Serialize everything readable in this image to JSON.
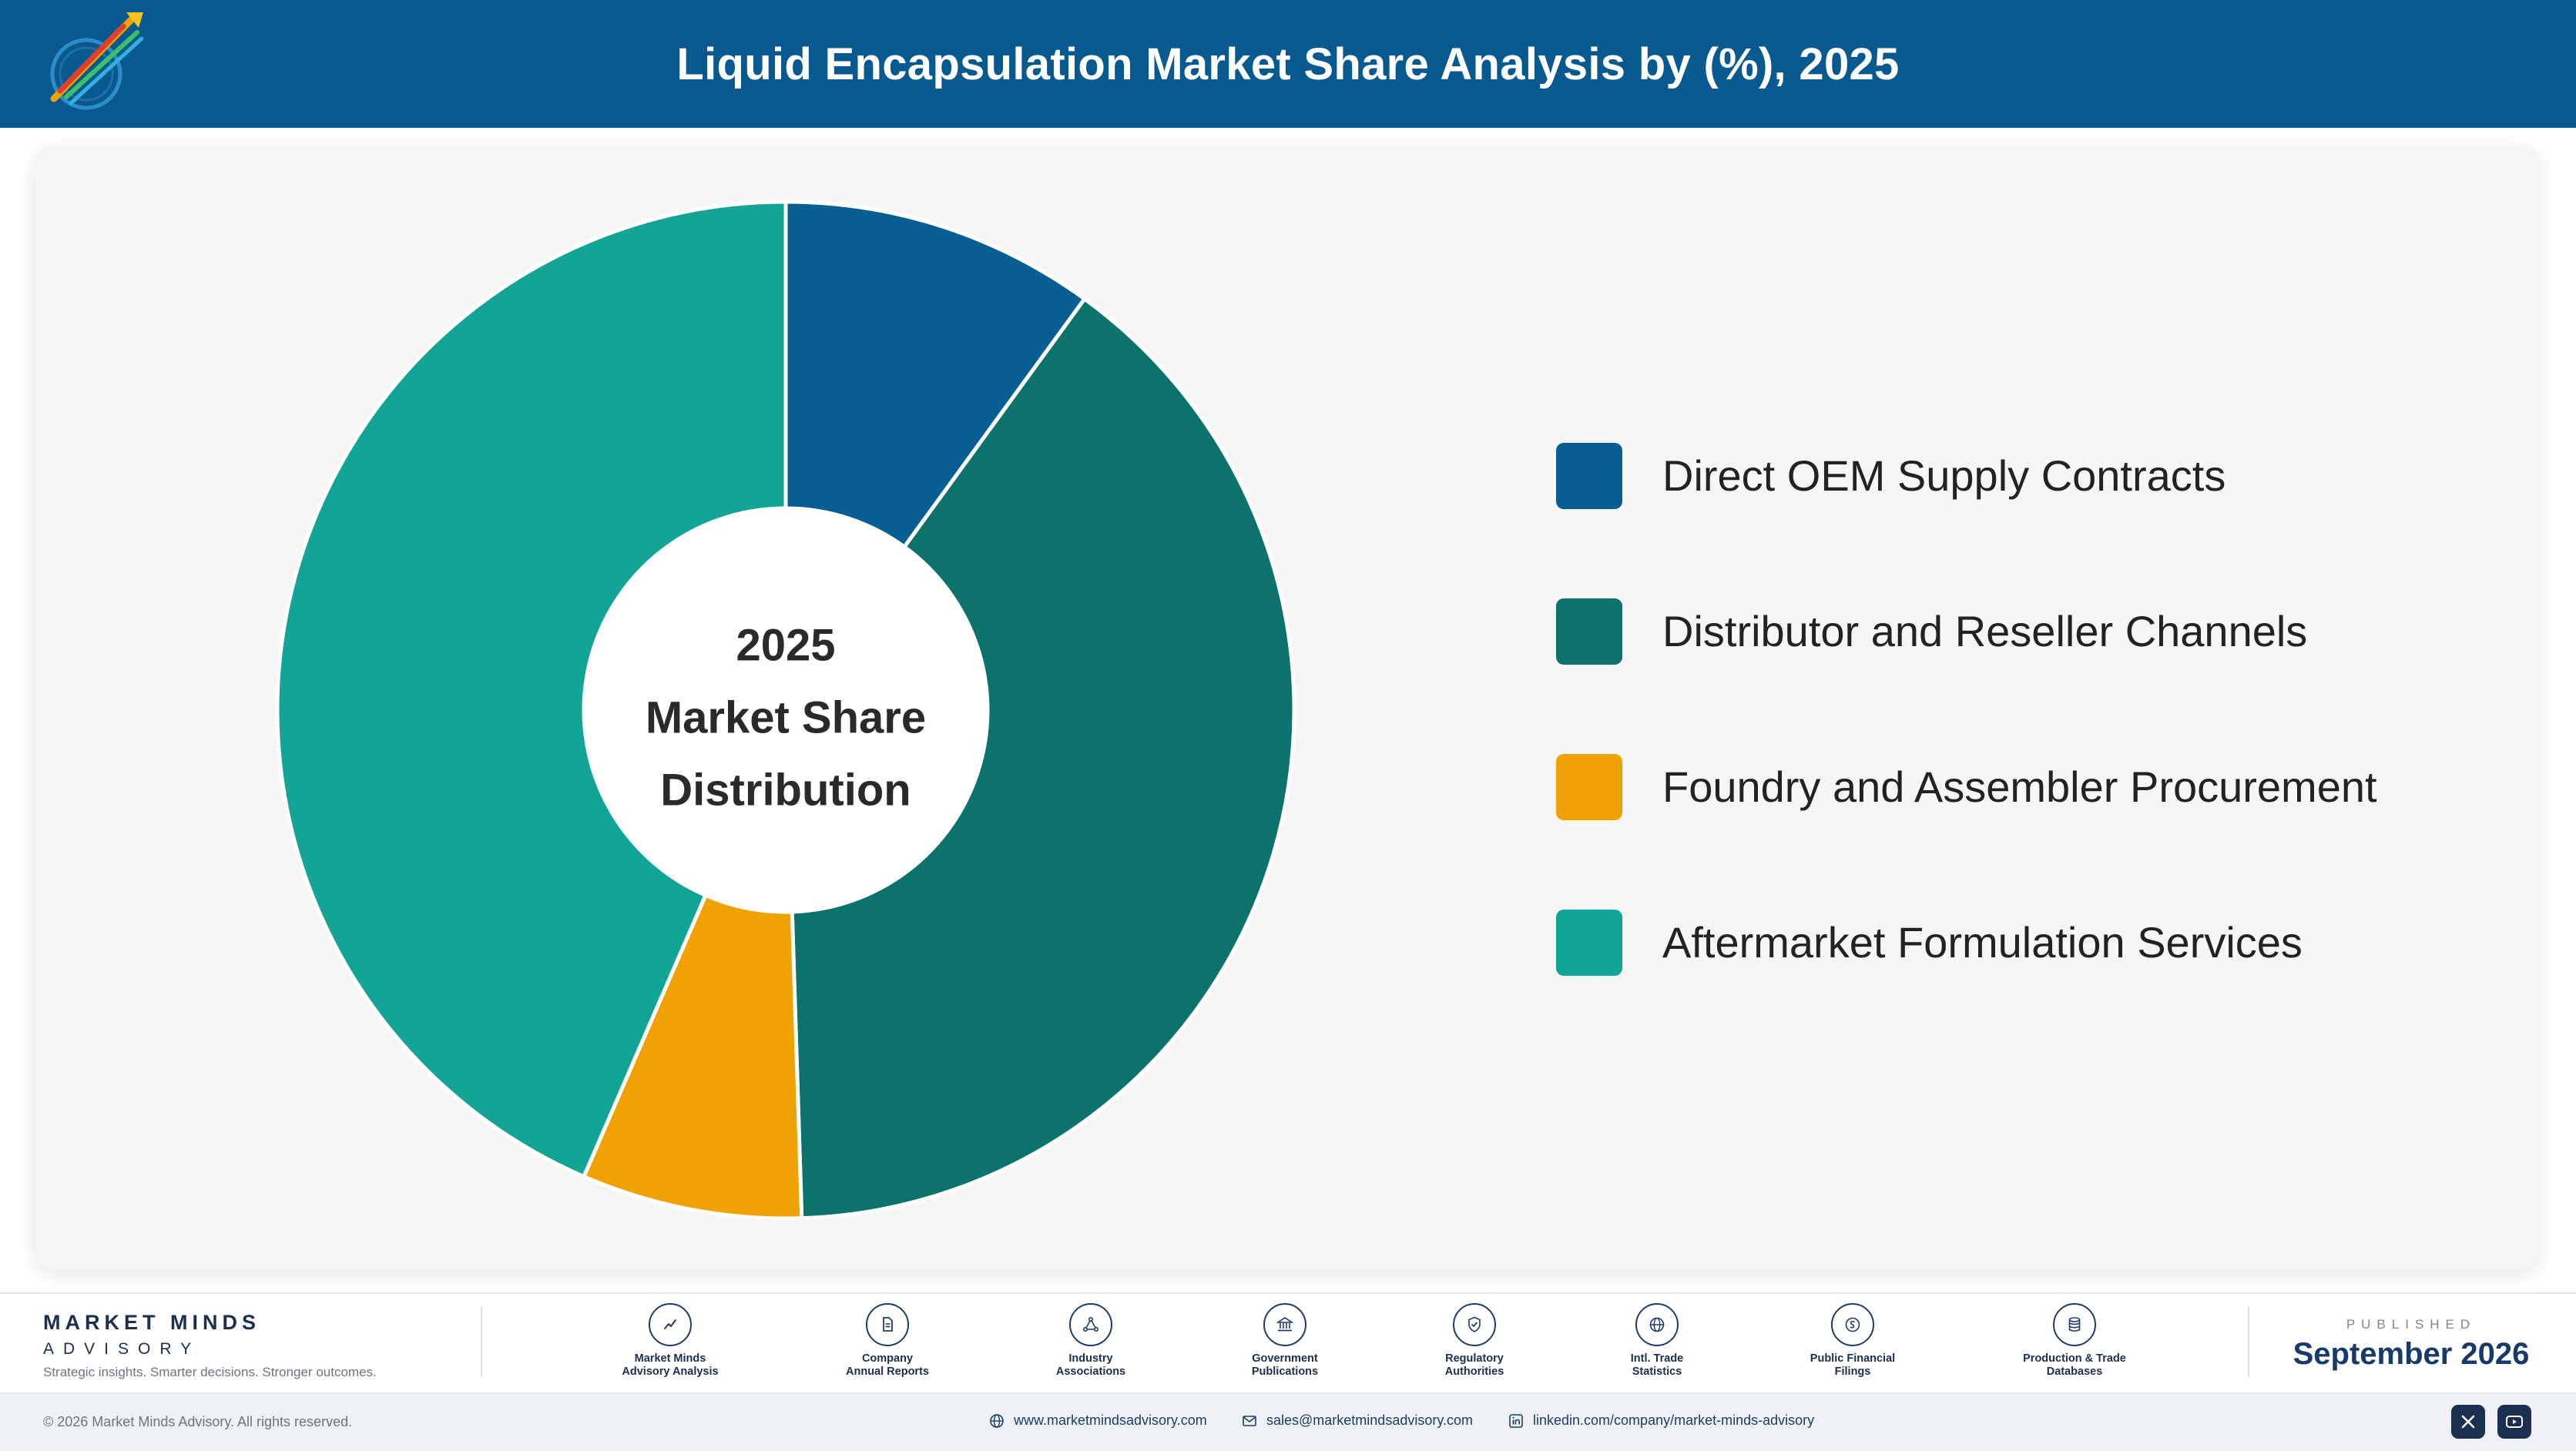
{
  "header": {
    "title": "Liquid Encapsulation Market Share Analysis by (%), 2025",
    "logo_text": "Market Minds Advisory"
  },
  "chart_data": {
    "type": "pie",
    "style": "donut",
    "center_label": [
      "2025",
      "Market Share",
      "Distribution"
    ],
    "categories": [
      "Direct OEM Supply Contracts",
      "Distributor and Reseller Channels",
      "Foundry and Assembler Procurement",
      "Aftermarket Formulation Services"
    ],
    "values": [
      10,
      39.5,
      7,
      43.5
    ],
    "unit": "%",
    "colors": [
      "#075e92",
      "#0b736b",
      "#f0a202",
      "#12a595"
    ],
    "legend_position": "right",
    "data_labels": false
  },
  "footer": {
    "brand_name": "MARKET MINDS",
    "brand_sub": "ADVISORY",
    "tagline": "Strategic insights. Smarter decisions. Stronger outcomes.",
    "sources": [
      {
        "icon": "trend-chart-icon",
        "label": "Market Minds\nAdvisory Analysis"
      },
      {
        "icon": "document-icon",
        "label": "Company\nAnnual Reports"
      },
      {
        "icon": "network-icon",
        "label": "Industry\nAssociations"
      },
      {
        "icon": "government-building-icon",
        "label": "Government\nPublications"
      },
      {
        "icon": "shield-check-icon",
        "label": "Regulatory\nAuthorities"
      },
      {
        "icon": "globe-icon",
        "label": "Intl. Trade\nStatistics"
      },
      {
        "icon": "coin-icon",
        "label": "Public Financial\nFilings"
      },
      {
        "icon": "database-icon",
        "label": "Production & Trade\nDatabases"
      }
    ],
    "published_label": "PUBLISHED",
    "published_date": "September 2026",
    "copyright": "© 2026 Market Minds Advisory. All rights reserved.",
    "website": "www.marketmindsadvisory.com",
    "email": "sales@marketmindsadvisory.com",
    "linkedin": "linkedin.com/company/market-minds-advisory",
    "social": [
      "x-icon",
      "youtube-icon"
    ]
  }
}
